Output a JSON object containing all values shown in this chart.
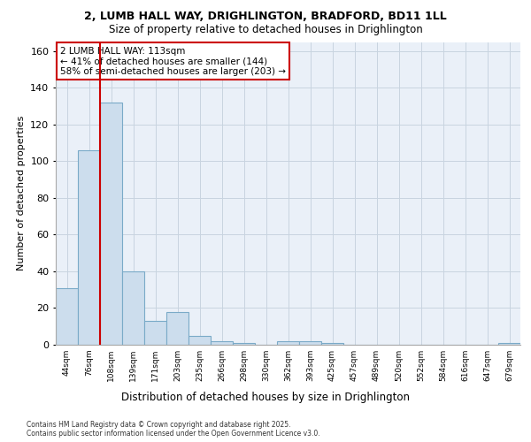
{
  "title_line1": "2, LUMB HALL WAY, DRIGHLINGTON, BRADFORD, BD11 1LL",
  "title_line2": "Size of property relative to detached houses in Drighlington",
  "xlabel": "Distribution of detached houses by size in Drighlington",
  "ylabel": "Number of detached properties",
  "categories": [
    "44sqm",
    "76sqm",
    "108sqm",
    "139sqm",
    "171sqm",
    "203sqm",
    "235sqm",
    "266sqm",
    "298sqm",
    "330sqm",
    "362sqm",
    "393sqm",
    "425sqm",
    "457sqm",
    "489sqm",
    "520sqm",
    "552sqm",
    "584sqm",
    "616sqm",
    "647sqm",
    "679sqm"
  ],
  "values": [
    31,
    106,
    132,
    40,
    13,
    18,
    5,
    2,
    1,
    0,
    2,
    2,
    1,
    0,
    0,
    0,
    0,
    0,
    0,
    0,
    1
  ],
  "bar_color": "#ccdded",
  "bar_edge_color": "#7aaac8",
  "highlight_index": 2,
  "highlight_line_color": "#cc0000",
  "ylim": [
    0,
    165
  ],
  "yticks": [
    0,
    20,
    40,
    60,
    80,
    100,
    120,
    140,
    160
  ],
  "annotation_text": "2 LUMB HALL WAY: 113sqm\n← 41% of detached houses are smaller (144)\n58% of semi-detached houses are larger (203) →",
  "annotation_box_color": "#ffffff",
  "annotation_box_edge": "#cc0000",
  "background_color": "#eaf0f8",
  "footer_text": "Contains HM Land Registry data © Crown copyright and database right 2025.\nContains public sector information licensed under the Open Government Licence v3.0.",
  "grid_color": "#c8d4e0"
}
